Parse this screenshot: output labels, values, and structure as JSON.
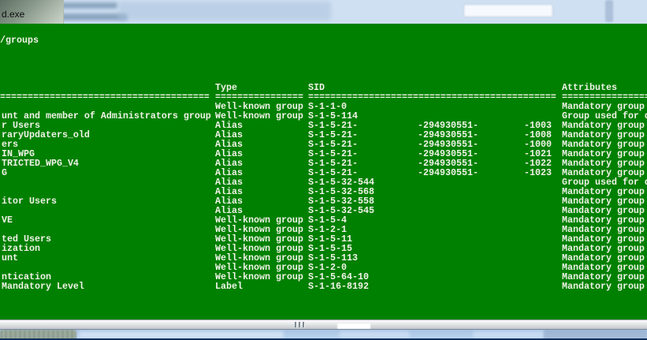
{
  "window": {
    "title_fragment": "d.exe"
  },
  "colors": {
    "terminal_background": "#008000",
    "terminal_text": "#f2f2e9",
    "backdrop_blue": "#cfe0f2",
    "bottom_edge_navy": "#10305e"
  },
  "terminal": {
    "command_line": "/groups",
    "header": {
      "type": "Type",
      "sid": "SID",
      "attributes": "Attributes"
    },
    "separator": {
      "name": "======================================",
      "type": "================",
      "sid": "=============================================",
      "attributes": "================"
    },
    "rows": [
      {
        "name": "",
        "type": "Well-known group",
        "sid": "S-1-1-0",
        "sid_mid": "",
        "sid_end": "",
        "attr": "Mandatory group"
      },
      {
        "name": "unt and member of Administrators group",
        "type": "Well-known group",
        "sid": "S-1-5-114",
        "sid_mid": "",
        "sid_end": "",
        "attr": "Group used for d"
      },
      {
        "name": "r Users",
        "type": "Alias",
        "sid": "S-1-5-21-",
        "sid_mid": "-294930551-",
        "sid_end": "-1003",
        "attr": "Mandatory group"
      },
      {
        "name": "raryUpdaters_old",
        "type": "Alias",
        "sid": "S-1-5-21-",
        "sid_mid": "-294930551-",
        "sid_end": "-1008",
        "attr": "Mandatory group"
      },
      {
        "name": "ers",
        "type": "Alias",
        "sid": "S-1-5-21-",
        "sid_mid": "-294930551-",
        "sid_end": "-1000",
        "attr": "Mandatory group"
      },
      {
        "name": "IN_WPG",
        "type": "Alias",
        "sid": "S-1-5-21-",
        "sid_mid": "-294930551-",
        "sid_end": "-1021",
        "attr": "Mandatory group"
      },
      {
        "name": "TRICTED_WPG_V4",
        "type": "Alias",
        "sid": "S-1-5-21-",
        "sid_mid": "-294930551-",
        "sid_end": "-1022",
        "attr": "Mandatory group"
      },
      {
        "name": "G",
        "type": "Alias",
        "sid": "S-1-5-21-",
        "sid_mid": "-294930551-",
        "sid_end": "-1023",
        "attr": "Mandatory group"
      },
      {
        "name": "",
        "type": "Alias",
        "sid": "S-1-5-32-544",
        "sid_mid": "",
        "sid_end": "",
        "attr": "Group used for d"
      },
      {
        "name": "",
        "type": "Alias",
        "sid": "S-1-5-32-568",
        "sid_mid": "",
        "sid_end": "",
        "attr": "Mandatory group"
      },
      {
        "name": "itor Users",
        "type": "Alias",
        "sid": "S-1-5-32-558",
        "sid_mid": "",
        "sid_end": "",
        "attr": "Mandatory group"
      },
      {
        "name": "",
        "type": "Alias",
        "sid": "S-1-5-32-545",
        "sid_mid": "",
        "sid_end": "",
        "attr": "Mandatory group"
      },
      {
        "name": "VE",
        "type": "Well-known group",
        "sid": "S-1-5-4",
        "sid_mid": "",
        "sid_end": "",
        "attr": "Mandatory group"
      },
      {
        "name": "",
        "type": "Well-known group",
        "sid": "S-1-2-1",
        "sid_mid": "",
        "sid_end": "",
        "attr": "Mandatory group"
      },
      {
        "name": "ted Users",
        "type": "Well-known group",
        "sid": "S-1-5-11",
        "sid_mid": "",
        "sid_end": "",
        "attr": "Mandatory group"
      },
      {
        "name": "ization",
        "type": "Well-known group",
        "sid": "S-1-5-15",
        "sid_mid": "",
        "sid_end": "",
        "attr": "Mandatory group"
      },
      {
        "name": "unt",
        "type": "Well-known group",
        "sid": "S-1-5-113",
        "sid_mid": "",
        "sid_end": "",
        "attr": "Mandatory group"
      },
      {
        "name": "",
        "type": "Well-known group",
        "sid": "S-1-2-0",
        "sid_mid": "",
        "sid_end": "",
        "attr": "Mandatory group"
      },
      {
        "name": "ntication",
        "type": "Well-known group",
        "sid": "S-1-5-64-10",
        "sid_mid": "",
        "sid_end": "",
        "attr": "Mandatory group"
      },
      {
        "name": "Mandatory Level",
        "type": "Label",
        "sid": "S-1-16-8192",
        "sid_mid": "",
        "sid_end": "",
        "attr": "Mandatory group"
      }
    ]
  }
}
